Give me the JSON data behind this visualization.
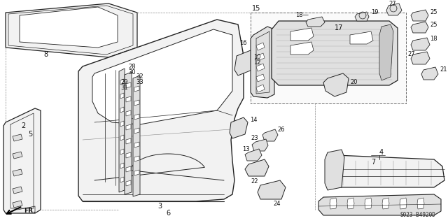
{
  "bg_color": "#ffffff",
  "diagram_code": "S023-B4920D",
  "figsize": [
    6.4,
    3.19
  ],
  "dpi": 100,
  "line_color": "#222222",
  "fill_light": "#f2f2f2",
  "fill_med": "#e0e0e0",
  "fill_dark": "#c8c8c8"
}
